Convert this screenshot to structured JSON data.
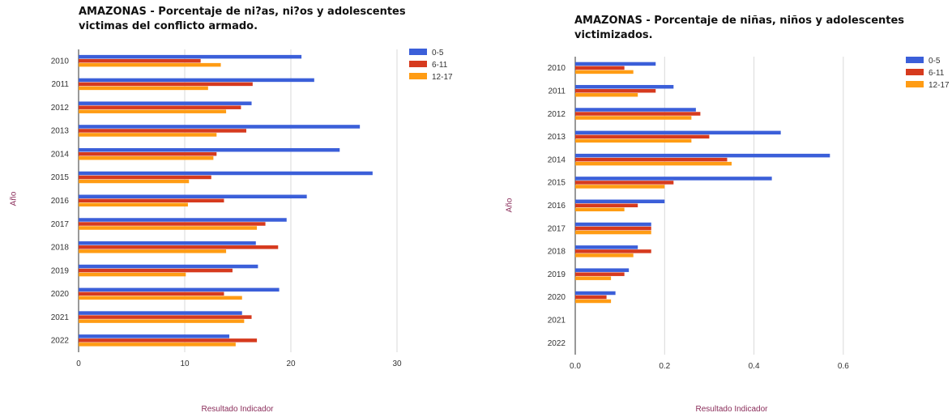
{
  "chart_data": [
    {
      "type": "bar",
      "orientation": "horizontal",
      "title": "AMAZONAS - Porcentaje de ni?as, ni?os y adolescentes victimas del conflicto armado.",
      "xlabel": "Resultado Indicador",
      "ylabel": "Año",
      "categories": [
        "2010",
        "2011",
        "2012",
        "2013",
        "2014",
        "2015",
        "2016",
        "2017",
        "2018",
        "2019",
        "2020",
        "2021",
        "2022"
      ],
      "series": [
        {
          "name": "0-5",
          "color": "#3b5fd9",
          "values": [
            21,
            22.2,
            16.3,
            26.5,
            24.6,
            27.7,
            21.5,
            19.6,
            16.7,
            16.9,
            18.9,
            15.4,
            14.2
          ]
        },
        {
          "name": "6-11",
          "color": "#d63a1e",
          "values": [
            11.5,
            16.4,
            15.3,
            15.8,
            13,
            12.5,
            13.7,
            17.6,
            18.8,
            14.5,
            13.7,
            16.3,
            16.8
          ]
        },
        {
          "name": "12-17",
          "color": "#ff9c14",
          "values": [
            13.4,
            12.2,
            13.9,
            13,
            12.7,
            10.4,
            10.3,
            16.8,
            13.9,
            10.1,
            15.4,
            15.6,
            14.8
          ]
        }
      ],
      "xlim": [
        0,
        30
      ],
      "xticks": [
        "0",
        "10",
        "20",
        "30"
      ],
      "grid": true,
      "legend_position": "right"
    },
    {
      "type": "bar",
      "orientation": "horizontal",
      "title": "AMAZONAS - Porcentaje de niñas, niños y adolescentes victimizados.",
      "xlabel": "Resultado Indicador",
      "ylabel": "Año",
      "categories": [
        "2010",
        "2011",
        "2012",
        "2013",
        "2014",
        "2015",
        "2016",
        "2017",
        "2018",
        "2019",
        "2020",
        "2021",
        "2022"
      ],
      "series": [
        {
          "name": "0-5",
          "color": "#3b5fd9",
          "values": [
            0.18,
            0.22,
            0.27,
            0.46,
            0.57,
            0.44,
            0.2,
            0.17,
            0.14,
            0.12,
            0.09,
            0,
            0
          ]
        },
        {
          "name": "6-11",
          "color": "#d63a1e",
          "values": [
            0.11,
            0.18,
            0.28,
            0.3,
            0.34,
            0.22,
            0.14,
            0.17,
            0.17,
            0.11,
            0.07,
            0,
            0
          ]
        },
        {
          "name": "12-17",
          "color": "#ff9c14",
          "values": [
            0.13,
            0.14,
            0.26,
            0.26,
            0.35,
            0.2,
            0.11,
            0.17,
            0.13,
            0.08,
            0.08,
            0,
            0
          ]
        }
      ],
      "xlim": [
        0,
        0.7
      ],
      "xticks": [
        "0.0",
        "0.2",
        "0.4",
        "0.6"
      ],
      "grid": true,
      "legend_position": "right"
    }
  ]
}
